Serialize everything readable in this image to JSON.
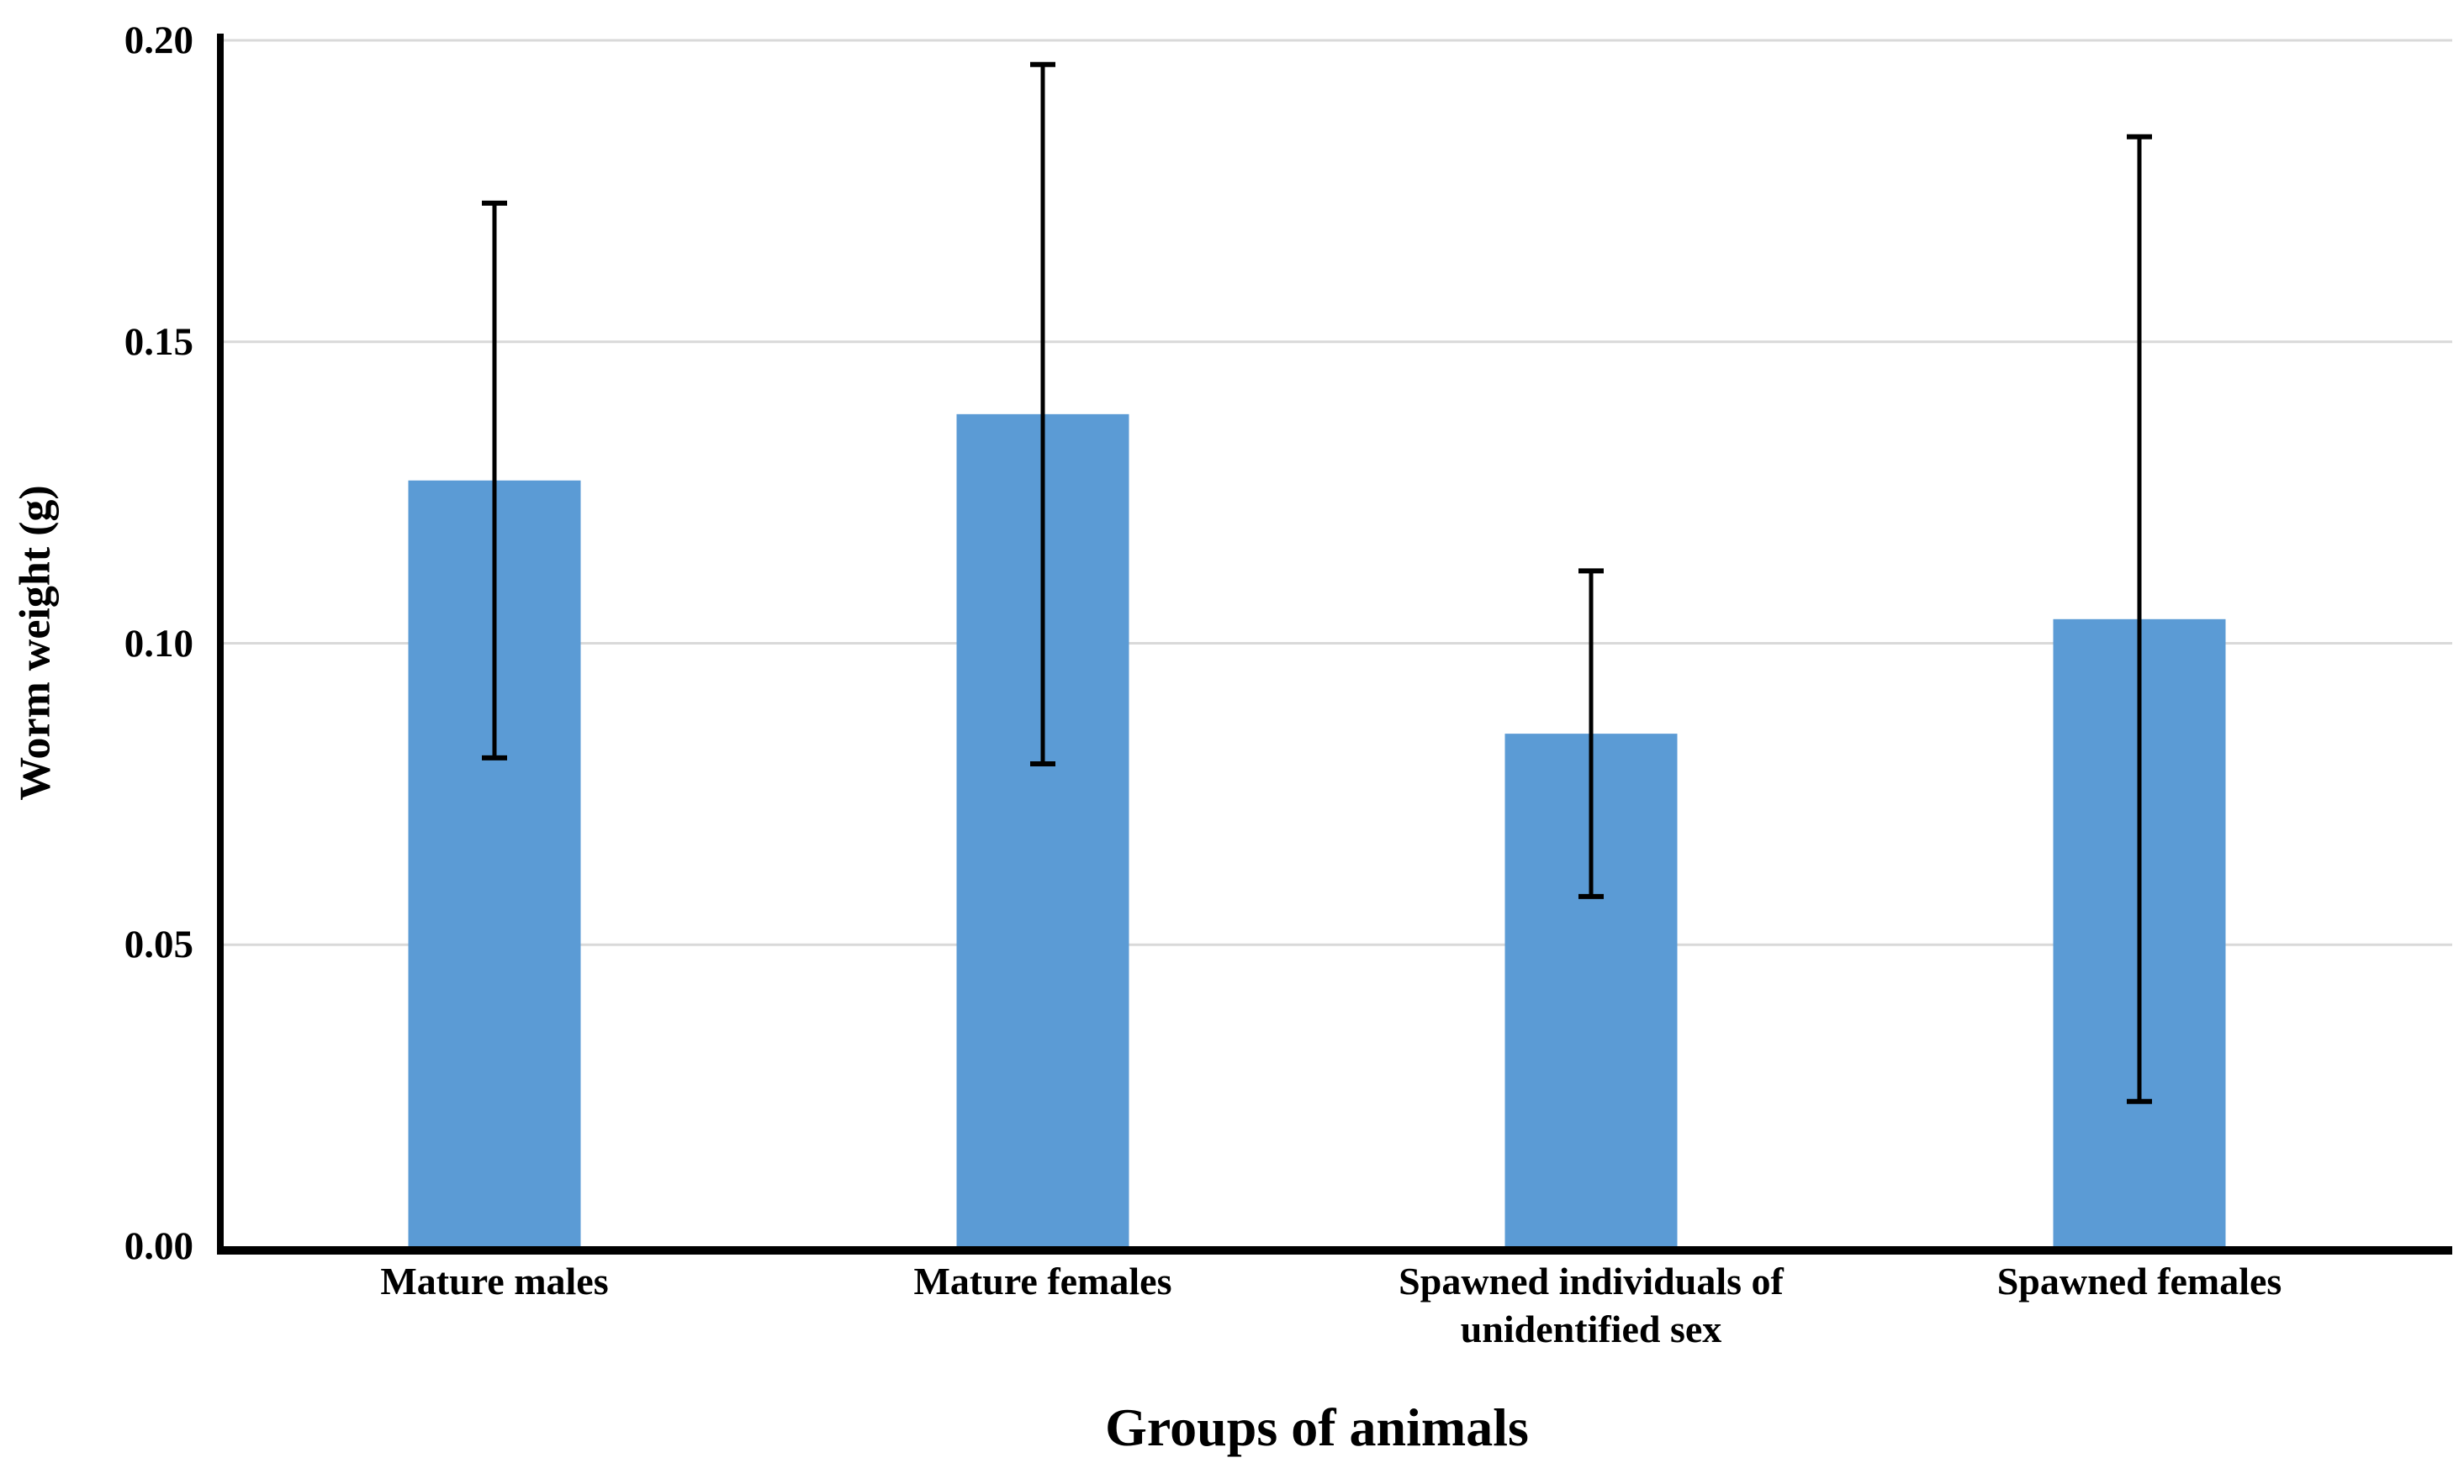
{
  "chart_data": {
    "type": "bar",
    "title": "",
    "xlabel": "Groups of animals",
    "ylabel": "Worm weight (g)",
    "categories": [
      "Mature males",
      "Mature females",
      "Spawned individuals of unidentified sex",
      "Spawned females"
    ],
    "values": [
      0.127,
      0.138,
      0.085,
      0.104
    ],
    "errors": [
      0.046,
      0.058,
      0.027,
      0.08
    ],
    "error_bar_tops": [
      0.173,
      0.196,
      0.112,
      0.184
    ],
    "error_bar_bottoms": [
      0.081,
      0.08,
      0.058,
      0.024
    ],
    "ylim": [
      0.0,
      0.2
    ],
    "ytick_step": 0.05,
    "yticks": [
      "0.00",
      "0.05",
      "0.10",
      "0.15",
      "0.20"
    ],
    "grid": true,
    "legend": "none",
    "bar_color": "#5B9BD5",
    "gridline_color": "#D9D9D9",
    "axis_color": "#000000",
    "error_bar_color": "#000000"
  }
}
